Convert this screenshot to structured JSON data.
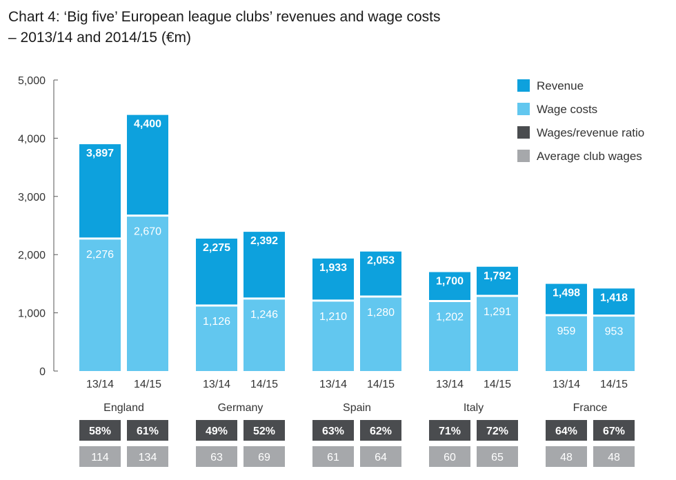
{
  "chart_data": {
    "type": "bar",
    "title_line1": "Chart 4: ‘Big five’ European league clubs’ revenues and wage costs",
    "title_line2": "– 2013/14 and 2014/15 (€m)",
    "ylim": [
      0,
      5000
    ],
    "yticks": [
      {
        "value": 0,
        "label": "0"
      },
      {
        "value": 1000,
        "label": "1,000"
      },
      {
        "value": 2000,
        "label": "2,000"
      },
      {
        "value": 3000,
        "label": "3,000"
      },
      {
        "value": 4000,
        "label": "4,000"
      },
      {
        "value": 5000,
        "label": "5,000"
      }
    ],
    "groups": [
      {
        "name": "England",
        "bars": [
          {
            "season": "13/14",
            "revenue": 3897,
            "revenue_label": "3,897",
            "wages": 2276,
            "wages_label": "2,276",
            "ratio": "58%",
            "avg_wages": "114"
          },
          {
            "season": "14/15",
            "revenue": 4400,
            "revenue_label": "4,400",
            "wages": 2670,
            "wages_label": "2,670",
            "ratio": "61%",
            "avg_wages": "134"
          }
        ]
      },
      {
        "name": "Germany",
        "bars": [
          {
            "season": "13/14",
            "revenue": 2275,
            "revenue_label": "2,275",
            "wages": 1126,
            "wages_label": "1,126",
            "ratio": "49%",
            "avg_wages": "63"
          },
          {
            "season": "14/15",
            "revenue": 2392,
            "revenue_label": "2,392",
            "wages": 1246,
            "wages_label": "1,246",
            "ratio": "52%",
            "avg_wages": "69"
          }
        ]
      },
      {
        "name": "Spain",
        "bars": [
          {
            "season": "13/14",
            "revenue": 1933,
            "revenue_label": "1,933",
            "wages": 1210,
            "wages_label": "1,210",
            "ratio": "63%",
            "avg_wages": "61"
          },
          {
            "season": "14/15",
            "revenue": 2053,
            "revenue_label": "2,053",
            "wages": 1280,
            "wages_label": "1,280",
            "ratio": "62%",
            "avg_wages": "64"
          }
        ]
      },
      {
        "name": "Italy",
        "bars": [
          {
            "season": "13/14",
            "revenue": 1700,
            "revenue_label": "1,700",
            "wages": 1202,
            "wages_label": "1,202",
            "ratio": "71%",
            "avg_wages": "60"
          },
          {
            "season": "14/15",
            "revenue": 1792,
            "revenue_label": "1,792",
            "wages": 1291,
            "wages_label": "1,291",
            "ratio": "72%",
            "avg_wages": "65"
          }
        ]
      },
      {
        "name": "France",
        "bars": [
          {
            "season": "13/14",
            "revenue": 1498,
            "revenue_label": "1,498",
            "wages": 959,
            "wages_label": "959",
            "ratio": "64%",
            "avg_wages": "48"
          },
          {
            "season": "14/15",
            "revenue": 1418,
            "revenue_label": "1,418",
            "wages": 953,
            "wages_label": "953",
            "ratio": "67%",
            "avg_wages": "48"
          }
        ]
      }
    ],
    "legend": [
      {
        "label": "Revenue",
        "color": "#0da1dd"
      },
      {
        "label": "Wage costs",
        "color": "#62c7ef"
      },
      {
        "label": "Wages/revenue ratio",
        "color": "#4a4c4f"
      },
      {
        "label": "Average club wages",
        "color": "#a6a8ab"
      }
    ],
    "legend_position": "top-right",
    "grid": false
  }
}
